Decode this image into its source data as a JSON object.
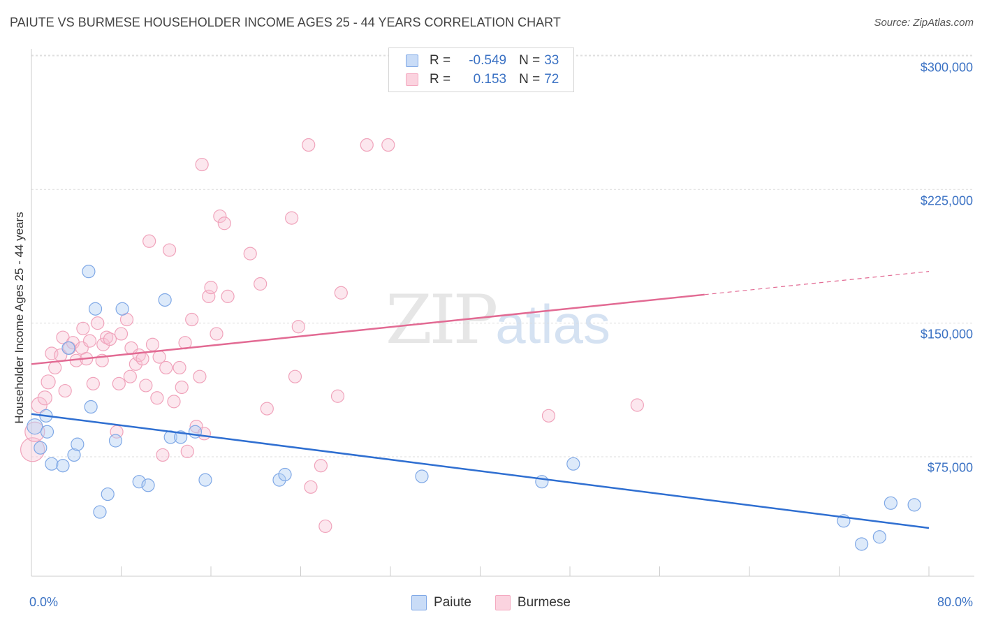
{
  "title": "PAIUTE VS BURMESE HOUSEHOLDER INCOME AGES 25 - 44 YEARS CORRELATION CHART",
  "source": "Source: ZipAtlas.com",
  "watermark": {
    "zip": "ZIP",
    "atlas": "atlas"
  },
  "stats": [
    {
      "r_label": "R =",
      "r": "-0.549",
      "n_label": "N =",
      "n": "33",
      "color": "#9ec0ee"
    },
    {
      "r_label": "R =",
      "r": "0.153",
      "n_label": "N =",
      "n": "72",
      "color": "#f4a9c0"
    }
  ],
  "chart_data": {
    "type": "scatter",
    "title": "PAIUTE VS BURMESE HOUSEHOLDER INCOME AGES 25 - 44 YEARS CORRELATION CHART",
    "xlabel": "",
    "ylabel": "Householder Income Ages 25 - 44 years",
    "xlim": [
      0,
      80
    ],
    "ylim": [
      0,
      310000
    ],
    "x_tick_labels": [
      "0.0%",
      "80.0%"
    ],
    "y_ticks": [
      75000,
      150000,
      225000,
      300000
    ],
    "y_tick_labels": [
      "$75,000",
      "$150,000",
      "$225,000",
      "$300,000"
    ],
    "grid": true,
    "legend_position": "bottom",
    "series": [
      {
        "name": "Paiute",
        "color": "#7fa8e6",
        "trend": {
          "x": [
            0,
            80
          ],
          "y": [
            99000,
            35000
          ],
          "color": "#2f6fd1"
        },
        "points": [
          [
            0.3,
            92000,
            22
          ],
          [
            1.3,
            98000,
            18
          ],
          [
            1.4,
            89000,
            18
          ],
          [
            0.8,
            80000,
            18
          ],
          [
            1.8,
            71000,
            18
          ],
          [
            2.8,
            70000,
            18
          ],
          [
            3.3,
            136000,
            18
          ],
          [
            3.8,
            76000,
            18
          ],
          [
            4.1,
            82000,
            18
          ],
          [
            5.1,
            179000,
            18
          ],
          [
            5.3,
            103000,
            18
          ],
          [
            5.7,
            158000,
            18
          ],
          [
            6.1,
            44000,
            18
          ],
          [
            6.8,
            54000,
            18
          ],
          [
            7.5,
            84000,
            18
          ],
          [
            8.1,
            158000,
            18
          ],
          [
            9.6,
            61000,
            18
          ],
          [
            10.4,
            59000,
            18
          ],
          [
            11.9,
            163000,
            18
          ],
          [
            12.4,
            86000,
            18
          ],
          [
            13.3,
            86000,
            18
          ],
          [
            14.6,
            89000,
            18
          ],
          [
            15.5,
            62000,
            18
          ],
          [
            22.1,
            62000,
            18
          ],
          [
            22.6,
            65000,
            18
          ],
          [
            34.8,
            64000,
            18
          ],
          [
            45.5,
            61000,
            18
          ],
          [
            48.3,
            71000,
            18
          ],
          [
            72.4,
            39000,
            18
          ],
          [
            74.0,
            26000,
            18
          ],
          [
            75.6,
            30000,
            18
          ],
          [
            76.6,
            49000,
            18
          ],
          [
            78.7,
            48000,
            18
          ]
        ]
      },
      {
        "name": "Burmese",
        "color": "#f4a9c0",
        "trend": {
          "x": [
            0,
            60,
            80
          ],
          "y": [
            127000,
            166000,
            179000
          ],
          "dashed_from_x": 60,
          "color": "#e26a93"
        },
        "points": [
          [
            0.1,
            79000,
            34
          ],
          [
            0.3,
            89000,
            28
          ],
          [
            0.7,
            104000,
            22
          ],
          [
            1.2,
            108000,
            20
          ],
          [
            1.5,
            117000,
            20
          ],
          [
            1.8,
            133000,
            18
          ],
          [
            2.1,
            125000,
            18
          ],
          [
            2.6,
            132000,
            18
          ],
          [
            2.8,
            142000,
            18
          ],
          [
            3.0,
            112000,
            18
          ],
          [
            3.4,
            136000,
            18
          ],
          [
            3.7,
            139000,
            18
          ],
          [
            4.0,
            129000,
            18
          ],
          [
            4.5,
            136000,
            18
          ],
          [
            4.6,
            147000,
            18
          ],
          [
            4.9,
            130000,
            18
          ],
          [
            5.2,
            140000,
            18
          ],
          [
            5.5,
            116000,
            18
          ],
          [
            5.9,
            150000,
            18
          ],
          [
            6.3,
            129000,
            18
          ],
          [
            6.4,
            138000,
            18
          ],
          [
            6.7,
            142000,
            18
          ],
          [
            7.0,
            141000,
            18
          ],
          [
            7.6,
            89000,
            18
          ],
          [
            7.8,
            116000,
            18
          ],
          [
            8.0,
            144000,
            18
          ],
          [
            8.5,
            152000,
            18
          ],
          [
            8.8,
            120000,
            18
          ],
          [
            8.9,
            136000,
            18
          ],
          [
            9.3,
            127000,
            18
          ],
          [
            9.6,
            132000,
            18
          ],
          [
            9.9,
            130000,
            18
          ],
          [
            10.2,
            115000,
            18
          ],
          [
            10.5,
            196000,
            18
          ],
          [
            10.8,
            138000,
            18
          ],
          [
            11.2,
            108000,
            18
          ],
          [
            11.4,
            131000,
            18
          ],
          [
            11.7,
            76000,
            18
          ],
          [
            12.0,
            125000,
            18
          ],
          [
            12.3,
            191000,
            18
          ],
          [
            12.7,
            106000,
            18
          ],
          [
            13.2,
            125000,
            18
          ],
          [
            13.4,
            114000,
            18
          ],
          [
            13.7,
            139000,
            18
          ],
          [
            13.9,
            78000,
            18
          ],
          [
            14.3,
            152000,
            18
          ],
          [
            14.7,
            92000,
            18
          ],
          [
            15.0,
            120000,
            18
          ],
          [
            15.2,
            239000,
            18
          ],
          [
            15.4,
            88000,
            18
          ],
          [
            15.8,
            165000,
            18
          ],
          [
            16.0,
            170000,
            18
          ],
          [
            16.5,
            144000,
            18
          ],
          [
            16.8,
            210000,
            18
          ],
          [
            17.2,
            206000,
            18
          ],
          [
            17.5,
            165000,
            18
          ],
          [
            19.5,
            189000,
            18
          ],
          [
            20.4,
            172000,
            18
          ],
          [
            21.0,
            102000,
            18
          ],
          [
            23.2,
            209000,
            18
          ],
          [
            23.5,
            120000,
            18
          ],
          [
            23.8,
            148000,
            18
          ],
          [
            24.7,
            250000,
            18
          ],
          [
            24.9,
            58000,
            18
          ],
          [
            25.8,
            70000,
            18
          ],
          [
            26.2,
            36000,
            18
          ],
          [
            27.3,
            109000,
            18
          ],
          [
            27.6,
            167000,
            18
          ],
          [
            29.9,
            250000,
            18
          ],
          [
            31.8,
            250000,
            18
          ],
          [
            46.1,
            98000,
            18
          ],
          [
            54.0,
            104000,
            18
          ]
        ]
      }
    ]
  }
}
